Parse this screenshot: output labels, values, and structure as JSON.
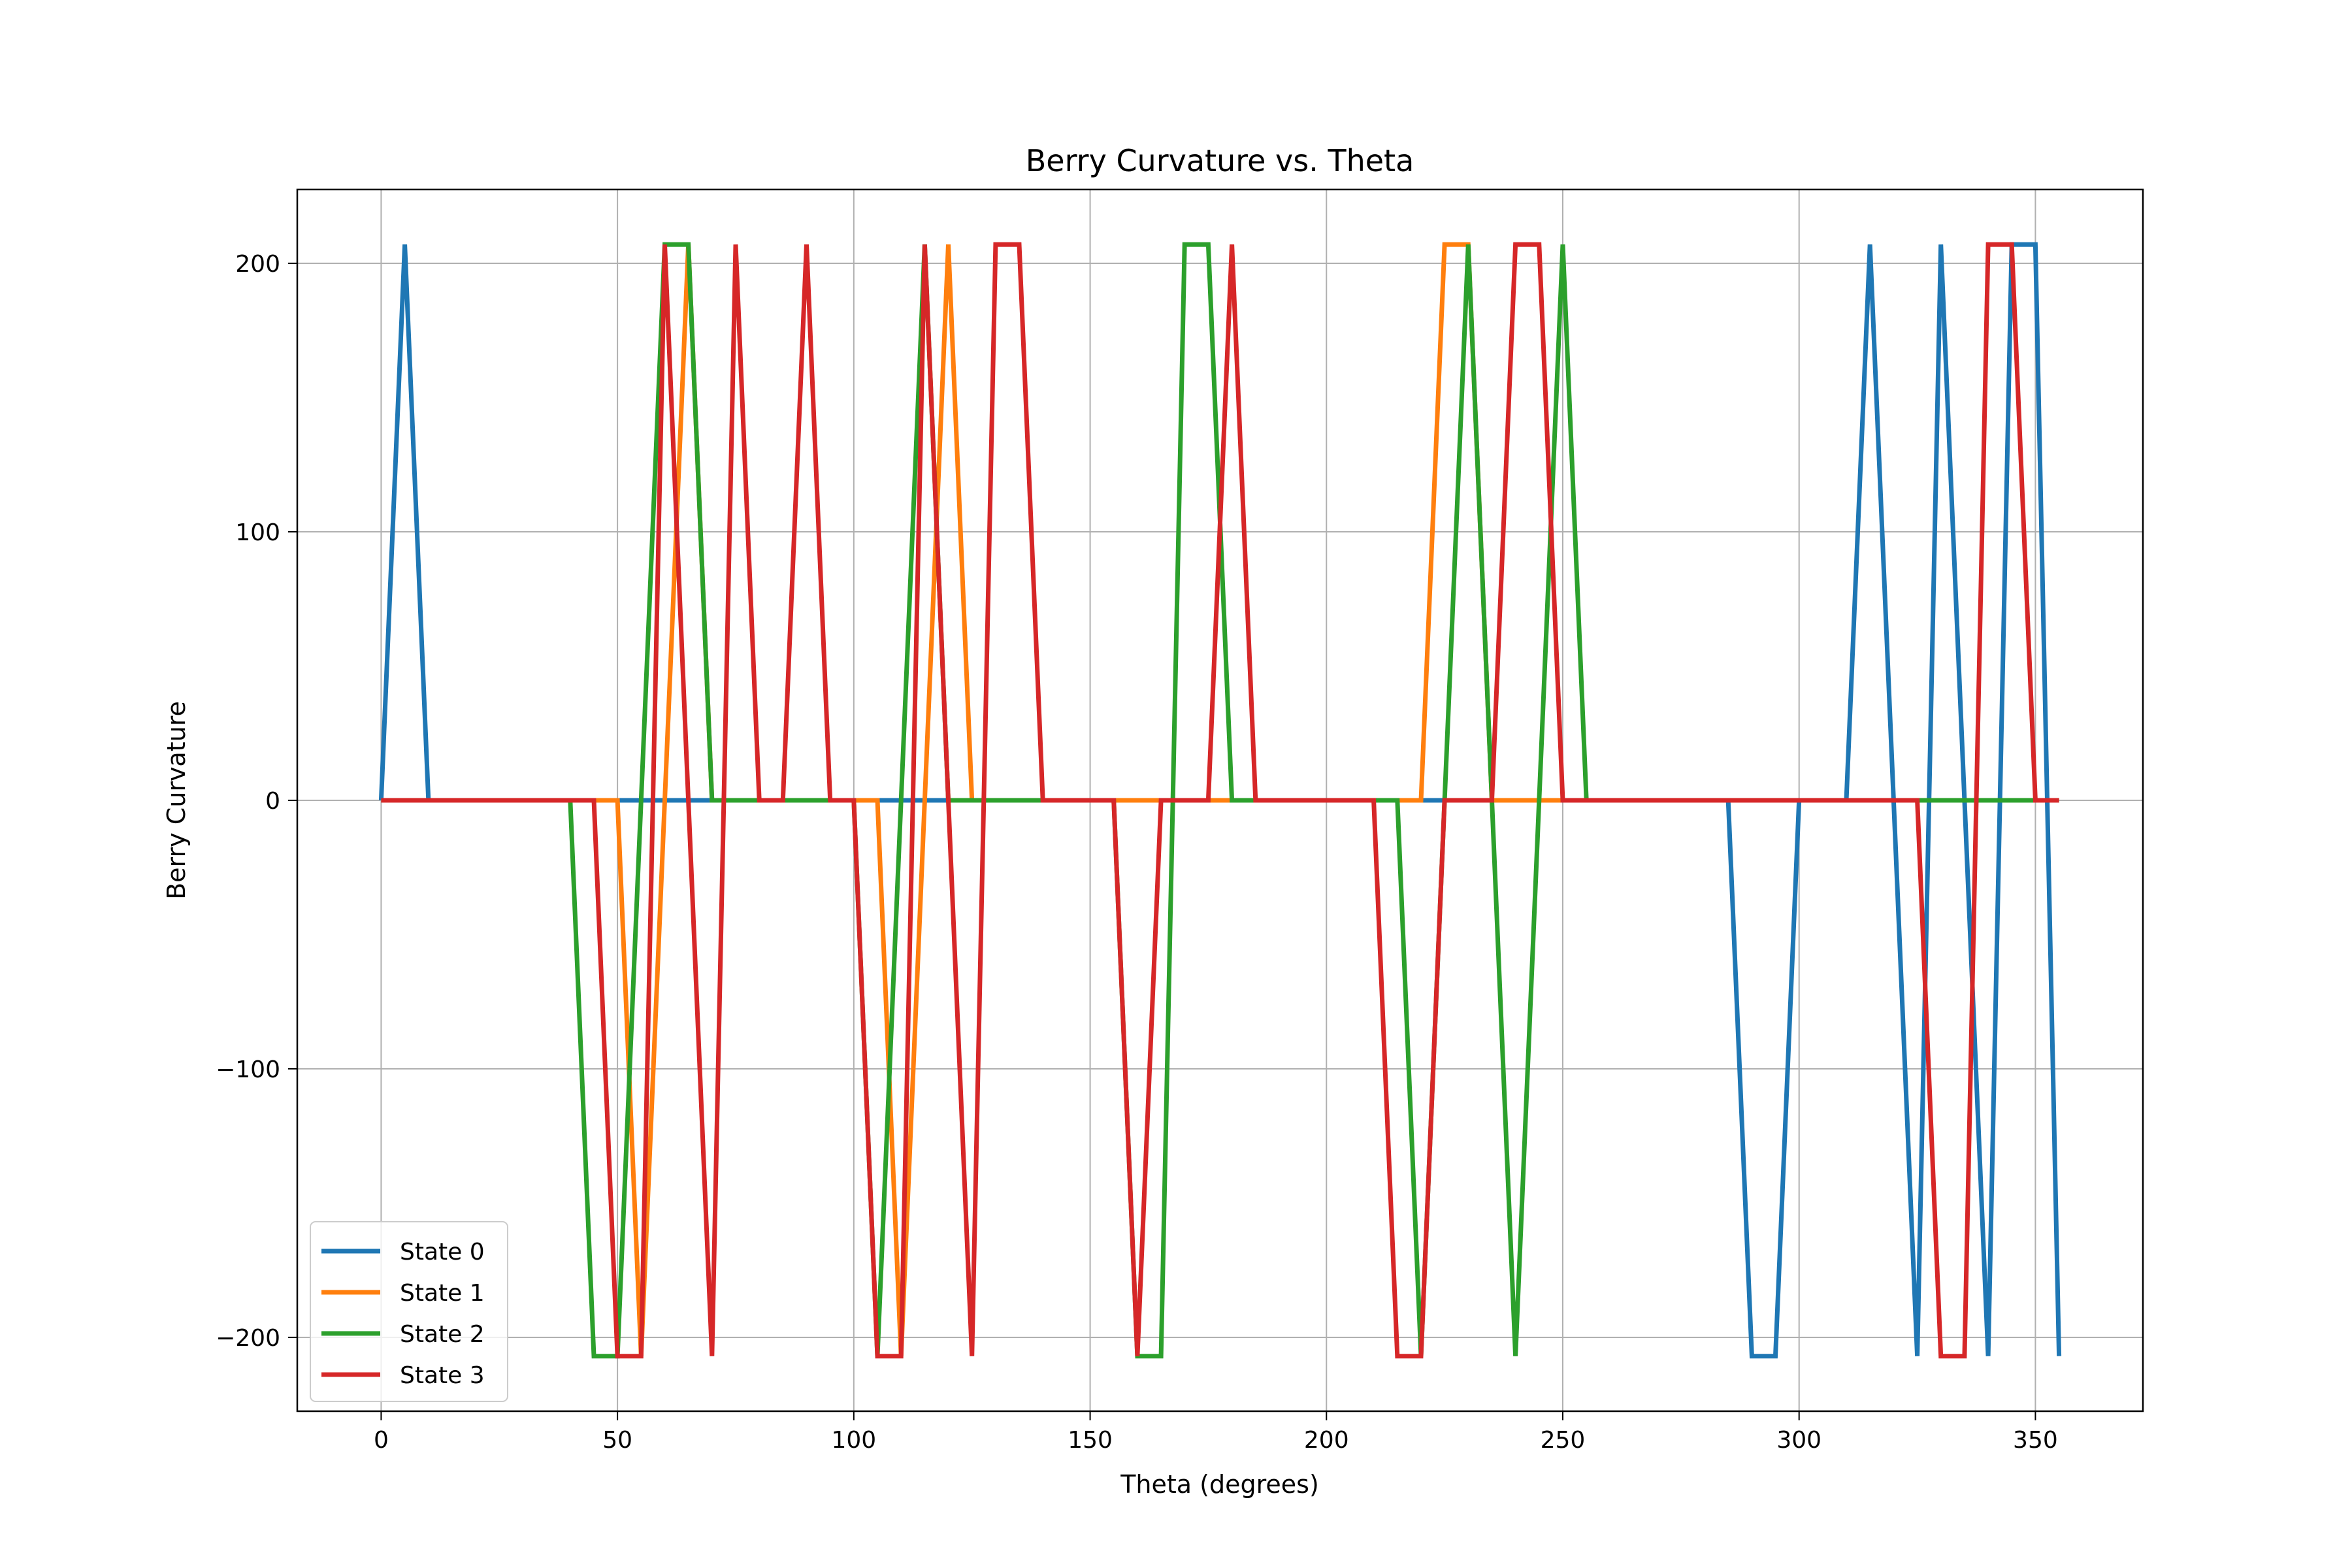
{
  "chart_data": {
    "type": "line",
    "title": "Berry Curvature vs. Theta",
    "xlabel": "Theta (degrees)",
    "ylabel": "Berry Curvature",
    "xlim": [
      -17.75,
      372.75
    ],
    "ylim": [
      -227.5,
      227.5
    ],
    "xticks": [
      0,
      50,
      100,
      150,
      200,
      250,
      300,
      350
    ],
    "yticks": [
      -200,
      -100,
      0,
      100,
      200
    ],
    "ytick_labels": [
      "−200",
      "−100",
      "0",
      "100",
      "200"
    ],
    "grid": true,
    "legend_position": "lower-left",
    "x": [
      0,
      5,
      10,
      15,
      20,
      25,
      30,
      35,
      40,
      45,
      50,
      55,
      60,
      65,
      70,
      75,
      80,
      85,
      90,
      95,
      100,
      105,
      110,
      115,
      120,
      125,
      130,
      135,
      140,
      145,
      150,
      155,
      160,
      165,
      170,
      175,
      180,
      185,
      190,
      195,
      200,
      205,
      210,
      215,
      220,
      225,
      230,
      235,
      240,
      245,
      250,
      255,
      260,
      265,
      270,
      275,
      280,
      285,
      290,
      295,
      300,
      305,
      310,
      315,
      320,
      325,
      330,
      335,
      340,
      345,
      350,
      355
    ],
    "series": [
      {
        "name": "State 0",
        "color": "#1f77b4",
        "values": [
          0,
          207,
          0,
          0,
          0,
          0,
          0,
          0,
          0,
          0,
          0,
          0,
          0,
          0,
          0,
          0,
          0,
          0,
          0,
          0,
          0,
          0,
          0,
          0,
          0,
          0,
          0,
          0,
          0,
          0,
          0,
          0,
          0,
          0,
          0,
          0,
          0,
          0,
          0,
          0,
          0,
          0,
          0,
          0,
          0,
          0,
          0,
          0,
          0,
          0,
          0,
          0,
          0,
          0,
          0,
          0,
          0,
          0,
          -207,
          -207,
          0,
          0,
          0,
          207,
          0,
          -207,
          207,
          0,
          -207,
          207,
          207,
          -207
        ]
      },
      {
        "name": "State 1",
        "color": "#ff7f0e",
        "values": [
          0,
          0,
          0,
          0,
          0,
          0,
          0,
          0,
          0,
          0,
          0,
          -207,
          0,
          207,
          0,
          0,
          0,
          0,
          0,
          0,
          0,
          0,
          -207,
          0,
          207,
          0,
          0,
          0,
          0,
          0,
          0,
          0,
          0,
          0,
          0,
          0,
          0,
          0,
          0,
          0,
          0,
          0,
          0,
          0,
          0,
          207,
          207,
          0,
          0,
          0,
          0,
          0,
          0,
          0,
          0,
          0,
          0,
          0,
          0,
          0,
          0,
          0,
          0,
          0,
          0,
          0,
          0,
          0,
          0,
          0,
          0,
          0
        ]
      },
      {
        "name": "State 2",
        "color": "#2ca02c",
        "values": [
          0,
          0,
          0,
          0,
          0,
          0,
          0,
          0,
          0,
          -207,
          -207,
          0,
          207,
          207,
          0,
          0,
          0,
          0,
          0,
          0,
          0,
          -207,
          0,
          207,
          0,
          0,
          0,
          0,
          0,
          0,
          0,
          0,
          -207,
          -207,
          207,
          207,
          0,
          0,
          0,
          0,
          0,
          0,
          0,
          0,
          -207,
          0,
          207,
          0,
          -207,
          0,
          207,
          0,
          0,
          0,
          0,
          0,
          0,
          0,
          0,
          0,
          0,
          0,
          0,
          0,
          0,
          0,
          0,
          0,
          0,
          0,
          0,
          0
        ]
      },
      {
        "name": "State 3",
        "color": "#d62728",
        "values": [
          0,
          0,
          0,
          0,
          0,
          0,
          0,
          0,
          0,
          0,
          -207,
          -207,
          207,
          0,
          -207,
          207,
          0,
          0,
          207,
          0,
          0,
          -207,
          -207,
          207,
          0,
          -207,
          207,
          207,
          0,
          0,
          0,
          0,
          -207,
          0,
          0,
          0,
          207,
          0,
          0,
          0,
          0,
          0,
          0,
          -207,
          -207,
          0,
          0,
          0,
          207,
          207,
          0,
          0,
          0,
          0,
          0,
          0,
          0,
          0,
          0,
          0,
          0,
          0,
          0,
          0,
          0,
          0,
          -207,
          -207,
          207,
          207,
          0,
          0
        ]
      }
    ]
  }
}
